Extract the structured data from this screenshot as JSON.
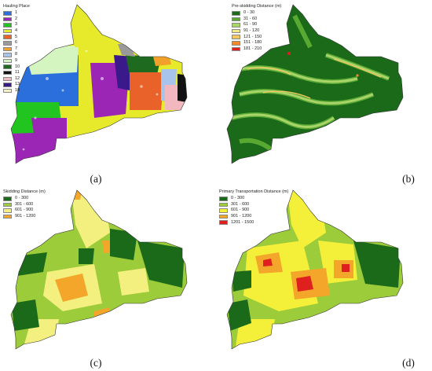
{
  "panels": [
    {
      "id": "a",
      "caption": "(a)",
      "legend_title": "Hauling Place",
      "legend": [
        {
          "label": "1",
          "color": "#2a6fdb"
        },
        {
          "label": "2",
          "color": "#9b26b6"
        },
        {
          "label": "3",
          "color": "#22c41f"
        },
        {
          "label": "4",
          "color": "#e6ea2a"
        },
        {
          "label": "5",
          "color": "#e8622a"
        },
        {
          "label": "6",
          "color": "#9a9a9a"
        },
        {
          "label": "7",
          "color": "#f1a02a"
        },
        {
          "label": "8",
          "color": "#a8c4ea"
        },
        {
          "label": "9",
          "color": "#d4f5c0"
        },
        {
          "label": "10",
          "color": "#1e6a1e"
        },
        {
          "label": "11",
          "color": "#111111"
        },
        {
          "label": "12",
          "color": "#f2b8c0"
        },
        {
          "label": "13",
          "color": "#3a1a8a"
        },
        {
          "label": "18",
          "color": "#f7f0c0"
        }
      ]
    },
    {
      "id": "b",
      "caption": "(b)",
      "legend_title": "Pre-skidding Distance (m)",
      "legend": [
        {
          "label": "0 - 30",
          "color": "#1a6a1a"
        },
        {
          "label": "31 - 60",
          "color": "#58a832"
        },
        {
          "label": "61 - 90",
          "color": "#a8d46a"
        },
        {
          "label": "91 - 120",
          "color": "#f2ea8a"
        },
        {
          "label": "121 - 150",
          "color": "#f6c660"
        },
        {
          "label": "151 - 180",
          "color": "#f08a2a"
        },
        {
          "label": "181 - 210",
          "color": "#e0201e"
        }
      ]
    },
    {
      "id": "c",
      "caption": "(c)",
      "legend_title": "Skidding Distance (m)",
      "legend": [
        {
          "label": "0 - 300",
          "color": "#1a6a1a"
        },
        {
          "label": "301 - 600",
          "color": "#9ccc3a"
        },
        {
          "label": "601 - 900",
          "color": "#f4f080"
        },
        {
          "label": "901 - 1200",
          "color": "#f4a62a"
        }
      ]
    },
    {
      "id": "d",
      "caption": "(d)",
      "legend_title": "Primary Transportation Distance (m)",
      "legend": [
        {
          "label": "0 - 300",
          "color": "#1a6a1a"
        },
        {
          "label": "301 - 600",
          "color": "#9ccc3a"
        },
        {
          "label": "601 - 900",
          "color": "#f4f03a"
        },
        {
          "label": "901 - 1200",
          "color": "#f4a62a"
        },
        {
          "label": "1201 - 1500",
          "color": "#e0201e"
        }
      ]
    }
  ]
}
